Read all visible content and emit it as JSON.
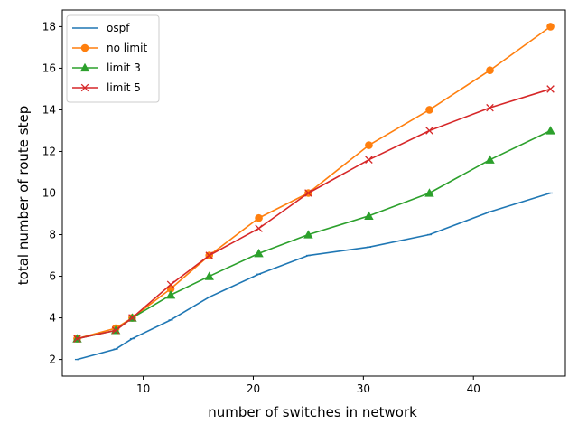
{
  "chart_data": {
    "type": "line",
    "xlabel": "number of switches in network",
    "ylabel": "total number of route step",
    "xlim": [
      2.65,
      48.35
    ],
    "ylim": [
      1.2,
      18.8
    ],
    "xticks": [
      10,
      20,
      30,
      40
    ],
    "yticks": [
      2,
      4,
      6,
      8,
      10,
      12,
      14,
      16,
      18
    ],
    "grid": false,
    "legend_position": "top-left",
    "series": [
      {
        "name": "ospf",
        "color": "#1f77b4",
        "marker": "tick",
        "x": [
          4,
          7.5,
          9,
          12.5,
          16,
          20.5,
          25,
          30.5,
          36,
          41.5,
          47
        ],
        "y": [
          2.0,
          2.5,
          3.0,
          3.9,
          5.0,
          6.1,
          7.0,
          7.4,
          8.0,
          9.1,
          10.0
        ]
      },
      {
        "name": "no limit",
        "color": "#ff7f0e",
        "marker": "circle",
        "x": [
          4,
          7.5,
          9,
          12.5,
          16,
          20.5,
          25,
          30.5,
          36,
          41.5,
          47
        ],
        "y": [
          3.0,
          3.5,
          4.0,
          5.4,
          7.0,
          8.8,
          10.0,
          12.3,
          14.0,
          15.9,
          18.0
        ]
      },
      {
        "name": "limit 3",
        "color": "#2ca02c",
        "marker": "triangle",
        "x": [
          4,
          7.5,
          9,
          12.5,
          16,
          20.5,
          25,
          30.5,
          36,
          41.5,
          47
        ],
        "y": [
          3.0,
          3.4,
          4.0,
          5.1,
          6.0,
          7.1,
          8.0,
          8.9,
          10.0,
          11.6,
          13.0
        ]
      },
      {
        "name": "limit 5",
        "color": "#d62728",
        "marker": "x",
        "x": [
          4,
          7.5,
          9,
          12.5,
          16,
          20.5,
          25,
          30.5,
          36,
          41.5,
          47
        ],
        "y": [
          3.0,
          3.4,
          4.0,
          5.6,
          7.0,
          8.3,
          10.0,
          11.6,
          13.0,
          14.1,
          15.0
        ]
      }
    ]
  }
}
